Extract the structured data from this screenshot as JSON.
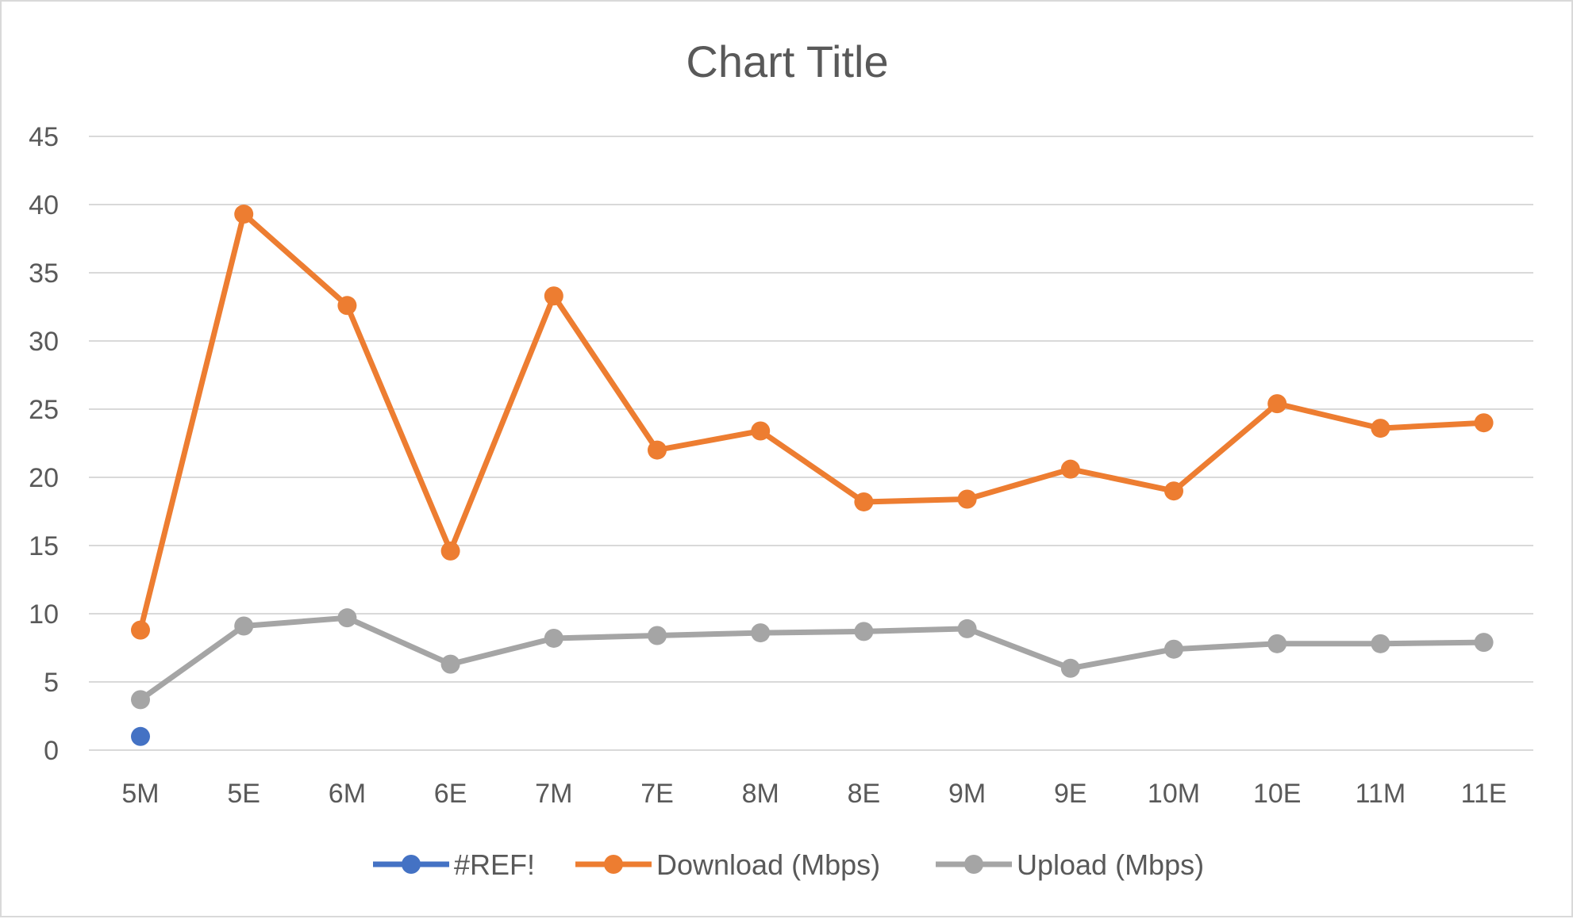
{
  "chart_data": {
    "type": "line",
    "title": "Chart Title",
    "xlabel": "",
    "ylabel": "",
    "ylim": [
      0,
      45
    ],
    "yticks": [
      0,
      5,
      10,
      15,
      20,
      25,
      30,
      35,
      40,
      45
    ],
    "grid": true,
    "legend_position": "bottom",
    "categories": [
      "5M",
      "5E",
      "6M",
      "6E",
      "7M",
      "7E",
      "8M",
      "8E",
      "9M",
      "9E",
      "10M",
      "10E",
      "11M",
      "11E"
    ],
    "series": [
      {
        "name": "#REF!",
        "color": "#4472C4",
        "values": [
          1,
          null,
          null,
          null,
          null,
          null,
          null,
          null,
          null,
          null,
          null,
          null,
          null,
          null
        ]
      },
      {
        "name": "Download (Mbps)",
        "color": "#ED7D31",
        "values": [
          8.8,
          39.3,
          32.6,
          14.6,
          33.3,
          22.0,
          23.4,
          18.2,
          18.4,
          20.6,
          19.0,
          25.4,
          23.6,
          24.0
        ]
      },
      {
        "name": "Upload (Mbps)",
        "color": "#A5A5A5",
        "values": [
          3.7,
          9.1,
          9.7,
          6.3,
          8.2,
          8.4,
          8.6,
          8.7,
          8.9,
          6.0,
          7.4,
          7.8,
          7.8,
          7.9
        ]
      }
    ]
  }
}
